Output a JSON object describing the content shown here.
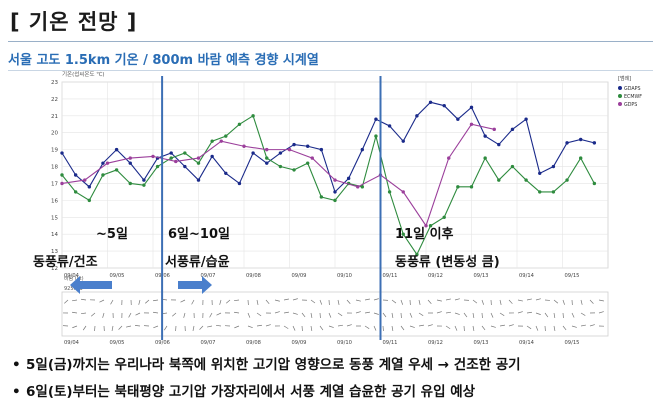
{
  "page": {
    "title": "[ 기온 전망 ]",
    "subtitle": "서울 고도 1.5km 기온 / 800m 바람 예측 경향 시계열",
    "bullets": [
      "5일(금)까지는 우리나라 북쪽에 위치한 고기압 영향으로 동풍 계열 우세 → 건조한 공기",
      "6일(토)부터는 북태평양 고기압 가장자리에서 서풍 계열 습윤한 공기 유입 예상"
    ]
  },
  "annotations": {
    "period1_label": "~5일",
    "period1_desc": "동풍류/건조",
    "period2_label": "6일~10일",
    "period2_desc": "서풍류/습윤",
    "period3_label": "11일 이후",
    "period3_desc": "동풍류 (변동성 큼)"
  },
  "colors": {
    "title_rule": "#9ab0c8",
    "subtitle": "#2a6db5",
    "divider_line": "#3c6fb4",
    "arrow": "#4a7fcc",
    "series_gdaps_like_navy": "#1a2a8a",
    "series_green": "#2e8b3e",
    "series_purple": "#9b3f9b"
  },
  "chart_data": {
    "type": "line",
    "ylabel": "기온(섭씨온도 ℃)",
    "ylim": [
      12,
      23
    ],
    "yticks": [
      12,
      13,
      14,
      15,
      16,
      17,
      18,
      19,
      20,
      21,
      22,
      23
    ],
    "x_range": [
      0,
      12
    ],
    "xticks": [
      "09/04",
      "09/05",
      "09/06",
      "09/07",
      "09/08",
      "09/09",
      "09/10",
      "09/11",
      "09/12",
      "09/13",
      "09/14",
      "09/15"
    ],
    "wind_panel_label": "925hPa",
    "wind_panel_ylabel": "바람 (kt)",
    "legend_title": "[범례]",
    "legend_position": "top-right",
    "grid": true,
    "dividers_x": [
      2.2,
      7.0
    ],
    "series": [
      {
        "name": "GDAPS",
        "color": "#1a2a8a",
        "x": [
          0.0,
          0.3,
          0.6,
          0.9,
          1.2,
          1.5,
          1.8,
          2.1,
          2.4,
          2.7,
          3.0,
          3.3,
          3.6,
          3.9,
          4.2,
          4.5,
          4.8,
          5.1,
          5.4,
          5.7,
          6.0,
          6.3,
          6.6,
          6.9,
          7.2,
          7.5,
          7.8,
          8.1,
          8.4,
          8.7,
          9.0,
          9.3,
          9.6,
          9.9,
          10.2,
          10.5,
          10.8,
          11.1,
          11.4,
          11.7
        ],
        "values": [
          18.8,
          17.5,
          16.8,
          18.2,
          19.0,
          18.2,
          17.2,
          18.5,
          18.8,
          18.0,
          17.2,
          18.6,
          17.6,
          17.0,
          18.8,
          18.2,
          18.8,
          19.3,
          19.2,
          19.0,
          16.5,
          17.3,
          19.0,
          20.8,
          20.4,
          19.5,
          21.0,
          21.8,
          21.6,
          20.8,
          21.5,
          19.8,
          19.3,
          20.2,
          20.8,
          17.6,
          18.0,
          19.4,
          19.6,
          19.4
        ]
      },
      {
        "name": "ECMWF",
        "color": "#2e8b3e",
        "x": [
          0.0,
          0.3,
          0.6,
          0.9,
          1.2,
          1.5,
          1.8,
          2.1,
          2.4,
          2.7,
          3.0,
          3.3,
          3.6,
          3.9,
          4.2,
          4.5,
          4.8,
          5.1,
          5.4,
          5.7,
          6.0,
          6.3,
          6.6,
          6.9,
          7.2,
          7.5,
          7.8,
          8.1,
          8.4,
          8.7,
          9.0,
          9.3,
          9.6,
          9.9,
          10.2,
          10.5,
          10.8,
          11.1,
          11.4,
          11.7
        ],
        "values": [
          17.5,
          16.5,
          16.0,
          17.5,
          17.8,
          17.0,
          16.9,
          18.0,
          18.5,
          18.8,
          18.2,
          19.5,
          19.8,
          20.5,
          21.0,
          18.5,
          18.0,
          17.8,
          18.2,
          16.2,
          16.0,
          17.0,
          16.8,
          19.8,
          16.5,
          14.0,
          12.8,
          14.5,
          15.0,
          16.8,
          16.8,
          18.5,
          17.2,
          18.0,
          17.2,
          16.5,
          16.5,
          17.2,
          18.5,
          17.0
        ]
      },
      {
        "name": "GDPS",
        "color": "#9b3f9b",
        "x": [
          0.0,
          0.5,
          1.0,
          1.5,
          2.0,
          2.5,
          3.0,
          3.5,
          4.0,
          4.5,
          5.0,
          5.5,
          6.0,
          6.5,
          7.0,
          7.5,
          8.0,
          8.5,
          9.0,
          9.5
        ],
        "values": [
          17.0,
          17.2,
          18.2,
          18.5,
          18.6,
          18.3,
          18.5,
          19.5,
          19.2,
          19.0,
          19.0,
          18.5,
          17.2,
          16.8,
          17.5,
          16.5,
          14.5,
          18.5,
          20.5,
          20.2
        ]
      }
    ]
  }
}
